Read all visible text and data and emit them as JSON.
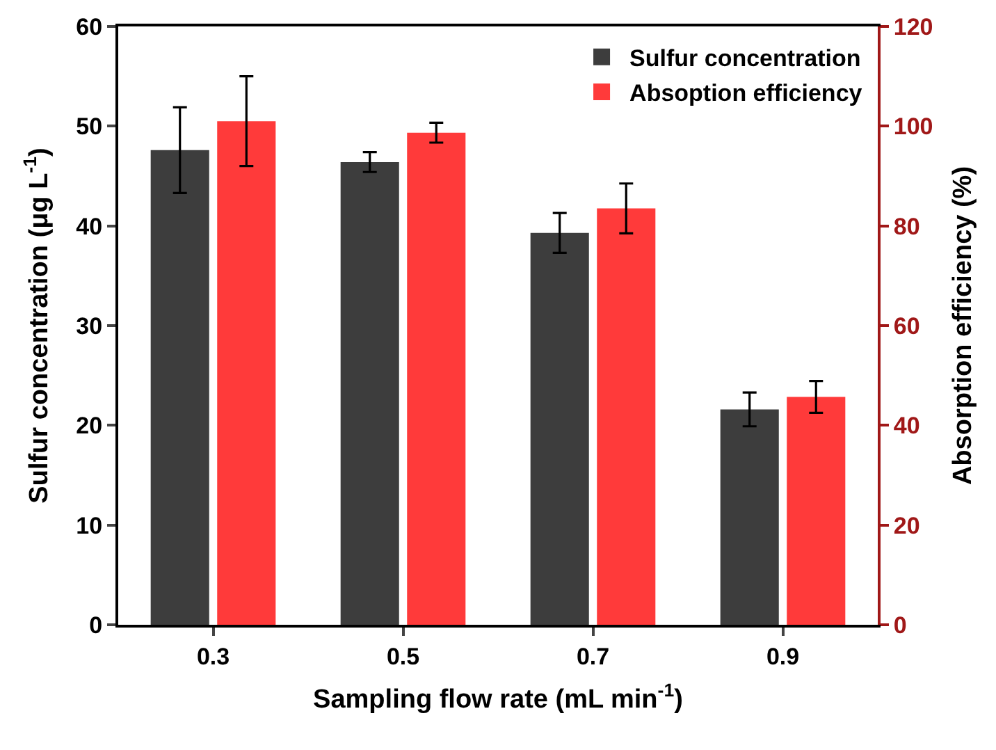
{
  "chart_data": {
    "type": "bar",
    "xlabel": "Sampling flow rate (mL min$^{-1}$)",
    "ylabel": "Sulfur concentration (μg L$^{-1}$)",
    "y2label": "Absorption efficiency (%)",
    "categories": [
      "0.3",
      "0.5",
      "0.7",
      "0.9"
    ],
    "series": [
      {
        "name": "Sulfur concentration",
        "color": "#3d3d3d",
        "values": [
          47.6,
          46.4,
          39.3,
          21.6
        ],
        "errors": [
          4.3,
          1.0,
          2.0,
          1.7
        ]
      },
      {
        "name": "Absoption efficiency",
        "color": "#ff3a3a",
        "axis": "y2",
        "values": [
          101,
          98.7,
          83.5,
          45.7
        ],
        "errors": [
          9,
          2,
          5,
          3.2
        ]
      }
    ],
    "ylim": [
      0,
      60
    ],
    "yticks": [
      0,
      10,
      20,
      30,
      40,
      50,
      60
    ],
    "y2lim": [
      0,
      120
    ],
    "y2ticks": [
      0,
      20,
      40,
      60,
      80,
      100,
      120
    ],
    "legend": "top right"
  }
}
